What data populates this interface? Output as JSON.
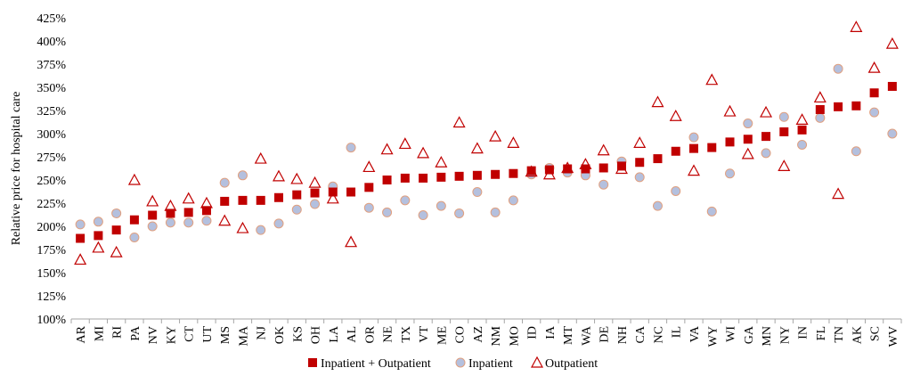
{
  "chart_data": {
    "type": "scatter",
    "ylabel": "Relative price for hospital care",
    "xlabel": "",
    "ylim": [
      100,
      425
    ],
    "yticks": [
      "100%",
      "125%",
      "150%",
      "175%",
      "200%",
      "225%",
      "250%",
      "275%",
      "300%",
      "325%",
      "350%",
      "375%",
      "400%",
      "425%"
    ],
    "grid": false,
    "legend_position": "bottom",
    "categories": [
      "AR",
      "MI",
      "RI",
      "PA",
      "NV",
      "KY",
      "CT",
      "UT",
      "MS",
      "MA",
      "NJ",
      "OK",
      "KS",
      "OH",
      "LA",
      "AL",
      "OR",
      "NE",
      "TX",
      "VT",
      "ME",
      "CO",
      "AZ",
      "NM",
      "MO",
      "ID",
      "IA",
      "MT",
      "WA",
      "DE",
      "NH",
      "CA",
      "NC",
      "IL",
      "VA",
      "WY",
      "WI",
      "GA",
      "MN",
      "NY",
      "IN",
      "FL",
      "TN",
      "AK",
      "SC",
      "WV"
    ],
    "series": [
      {
        "name": "Inpatient + Outpatient",
        "marker": "square",
        "color": "#C00000",
        "values": [
          187,
          190,
          196,
          207,
          212,
          214,
          215,
          217,
          227,
          228,
          228,
          231,
          234,
          236,
          237,
          237,
          242,
          250,
          252,
          252,
          253,
          254,
          255,
          256,
          257,
          260,
          261,
          262,
          262,
          263,
          265,
          269,
          273,
          281,
          284,
          285,
          291,
          294,
          297,
          302,
          304,
          326,
          329,
          330,
          344,
          351
        ]
      },
      {
        "name": "Inpatient",
        "marker": "circle",
        "color": "#B4C0DE",
        "edge": "#E0A080",
        "values": [
          202,
          205,
          214,
          188,
          200,
          204,
          204,
          206,
          247,
          255,
          196,
          203,
          218,
          224,
          243,
          285,
          220,
          215,
          228,
          212,
          222,
          214,
          237,
          215,
          228,
          256,
          263,
          258,
          255,
          245,
          270,
          253,
          222,
          238,
          296,
          216,
          257,
          311,
          279,
          318,
          288,
          317,
          370,
          281,
          323,
          300
        ]
      },
      {
        "name": "Outpatient",
        "marker": "triangle",
        "color": "#C00000",
        "values": [
          164,
          177,
          172,
          250,
          227,
          222,
          230,
          225,
          206,
          198,
          273,
          254,
          251,
          247,
          230,
          183,
          264,
          283,
          289,
          279,
          269,
          312,
          284,
          297,
          290,
          259,
          256,
          263,
          267,
          282,
          262,
          290,
          334,
          319,
          260,
          358,
          324,
          278,
          323,
          265,
          315,
          339,
          235,
          415,
          371,
          397
        ]
      }
    ]
  }
}
